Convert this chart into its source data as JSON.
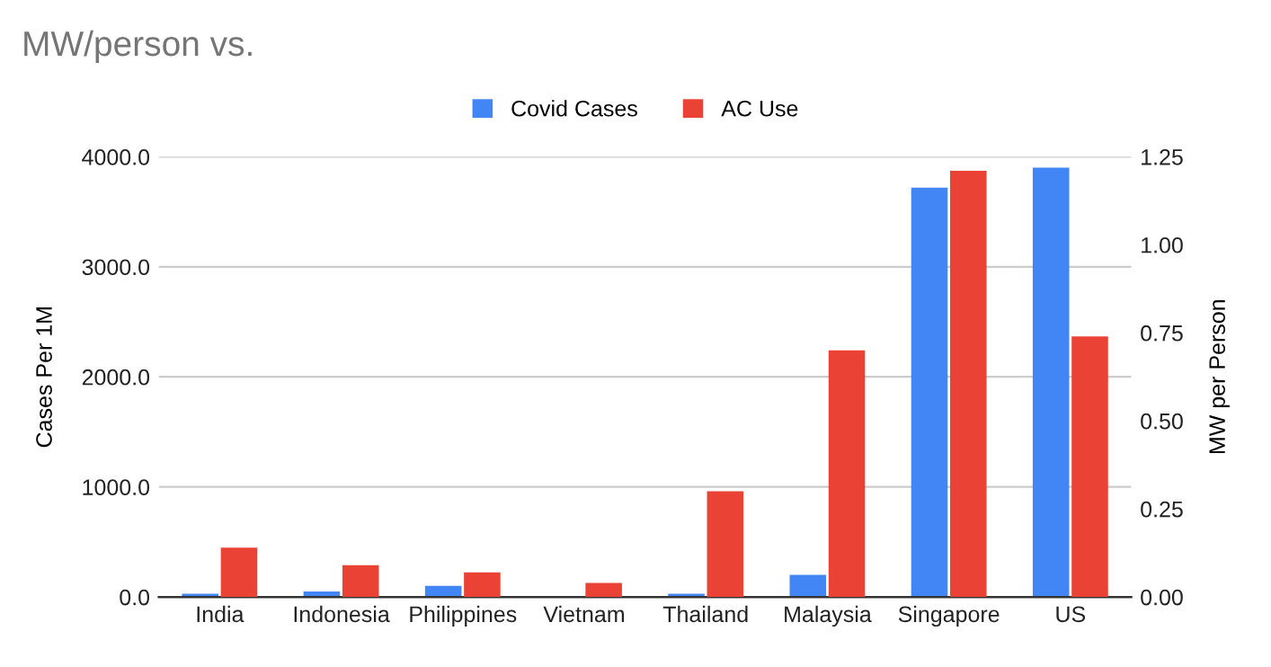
{
  "chart_data": {
    "type": "bar",
    "title": "MW/person vs.",
    "ylabel": "Cases Per 1M",
    "y2label": "MW per Person",
    "categories": [
      "India",
      "Indonesia",
      "Philippines",
      "Vietnam",
      "Thailand",
      "Malaysia",
      "Singapore",
      "US"
    ],
    "series": [
      {
        "name": "Covid Cases",
        "color": "#4285f4",
        "values": [
          30,
          50,
          100,
          0,
          30,
          200,
          3720,
          3900
        ]
      },
      {
        "name": "AC Use",
        "color": "#ea4335",
        "axis": "y2",
        "values": [
          0.14,
          0.09,
          0.07,
          0.04,
          0.3,
          0.7,
          1.21,
          0.74
        ]
      }
    ],
    "ylim": [
      0,
      4000
    ],
    "yticks": [
      {
        "value": 0,
        "label": "0.0"
      },
      {
        "value": 1000,
        "label": "1000.0"
      },
      {
        "value": 2000,
        "label": "2000.0"
      },
      {
        "value": 3000,
        "label": "3000.0"
      },
      {
        "value": 4000,
        "label": "4000.0"
      }
    ],
    "y2lim": [
      0,
      1.25
    ],
    "y2ticks": [
      {
        "value": 0,
        "label": "0.00"
      },
      {
        "value": 0.25,
        "label": "0.25"
      },
      {
        "value": 0.5,
        "label": "0.50"
      },
      {
        "value": 0.75,
        "label": "0.75"
      },
      {
        "value": 1.0,
        "label": "1.00"
      },
      {
        "value": 1.25,
        "label": "1.25"
      }
    ],
    "grid": "y",
    "legend": "top"
  }
}
